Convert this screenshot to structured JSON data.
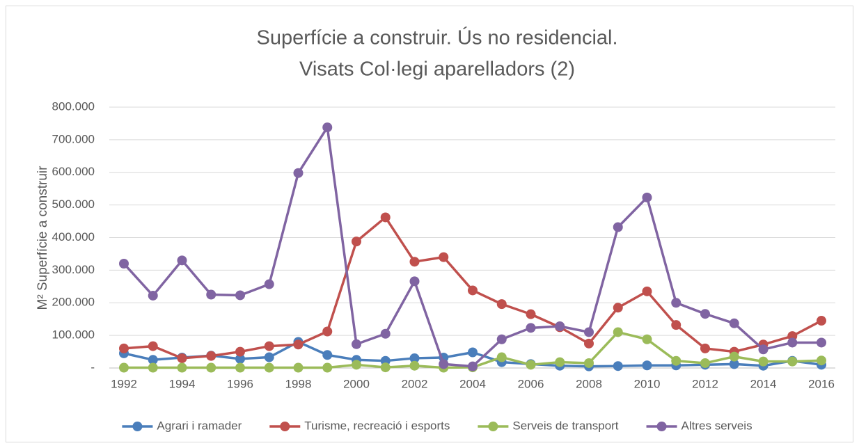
{
  "chart_data": {
    "type": "line",
    "title": [
      "Superfície a construir. Ús no residencial.",
      "Visats Col·legi aparelladors (2)"
    ],
    "y_label": "M² Superfície a construir",
    "categories": [
      "1992",
      null,
      "1994",
      null,
      "1996",
      null,
      "1998",
      null,
      "2000",
      null,
      "2002",
      null,
      "2004",
      null,
      "2006",
      null,
      "2008",
      null,
      "2010",
      null,
      "2012",
      null,
      "2014",
      null,
      "2016"
    ],
    "series": [
      {
        "name": "Agrari i ramader",
        "color": "#4a7ebb",
        "values": [
          45000,
          25000,
          32000,
          38000,
          28000,
          33000,
          80000,
          40000,
          25000,
          22000,
          30000,
          32000,
          48000,
          18000,
          12000,
          7000,
          5000,
          6000,
          8000,
          8000,
          10000,
          12000,
          7000,
          22000,
          10000
        ]
      },
      {
        "name": "Turisme, recreació i esports",
        "color": "#c0504d",
        "values": [
          60000,
          67000,
          30000,
          37000,
          50000,
          67000,
          72000,
          112000,
          388000,
          462000,
          326000,
          340000,
          238000,
          196000,
          165000,
          125000,
          75000,
          185000,
          235000,
          132000,
          60000,
          50000,
          72000,
          98000,
          145000
        ]
      },
      {
        "name": "Serveis de transport",
        "color": "#9bbb59",
        "values": [
          1000,
          1000,
          1000,
          1000,
          1000,
          1000,
          1000,
          1000,
          10000,
          2000,
          7000,
          1000,
          2000,
          33000,
          10000,
          18000,
          15000,
          110000,
          88000,
          22000,
          15000,
          35000,
          20000,
          20000,
          23000
        ]
      },
      {
        "name": "Altres serveis",
        "color": "#8064a2",
        "values": [
          320000,
          222000,
          330000,
          225000,
          223000,
          257000,
          598000,
          738000,
          73000,
          105000,
          266000,
          12000,
          5000,
          88000,
          123000,
          128000,
          110000,
          432000,
          523000,
          200000,
          166000,
          137000,
          57000,
          78000,
          78000
        ]
      }
    ],
    "ylim": [
      0,
      800000
    ],
    "yticks": [
      {
        "value": 0,
        "label": "-"
      },
      {
        "value": 100000,
        "label": "100.000"
      },
      {
        "value": 200000,
        "label": "200.000"
      },
      {
        "value": 300000,
        "label": "300.000"
      },
      {
        "value": 400000,
        "label": "400.000"
      },
      {
        "value": 500000,
        "label": "500.000"
      },
      {
        "value": 600000,
        "label": "600.000"
      },
      {
        "value": 700000,
        "label": "700.000"
      },
      {
        "value": 800000,
        "label": "800.000"
      }
    ],
    "grid": true,
    "legend": "bottom"
  }
}
